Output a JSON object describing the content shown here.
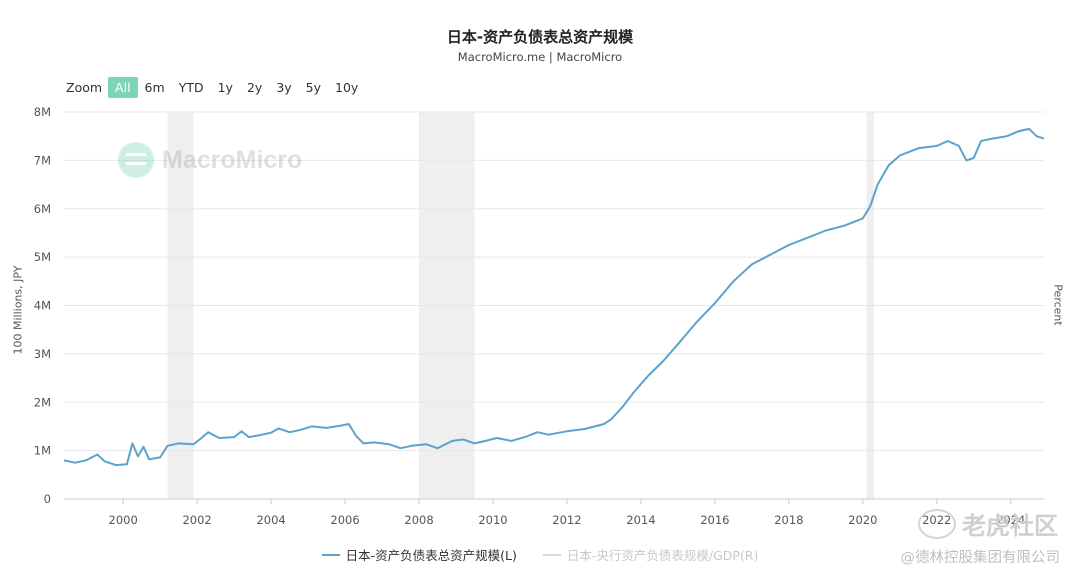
{
  "header": {
    "title": "日本-资产负债表总资产规模",
    "subtitle": "MacroMicro.me | MacroMicro"
  },
  "zoom": {
    "label": "Zoom",
    "options": [
      "All",
      "6m",
      "YTD",
      "1y",
      "2y",
      "3y",
      "5y",
      "10y"
    ],
    "active": "All"
  },
  "watermark": {
    "text": "MacroMicro"
  },
  "branding": {
    "site": "老虎社区",
    "company": "@德林控股集团有限公司"
  },
  "colors": {
    "series": "#5ba3cc",
    "inactive_series": "#d9d9d9",
    "recession": "#efefef",
    "zoom_active": "#7fd4b6"
  },
  "chart_data": {
    "type": "line",
    "ylabel": "100 Millions, JPY",
    "ylabel_right": "Percent",
    "ylim": [
      0,
      8000000
    ],
    "yticks": [
      0,
      1000000,
      2000000,
      3000000,
      4000000,
      5000000,
      6000000,
      7000000,
      8000000
    ],
    "ytick_labels": [
      "0",
      "1M",
      "2M",
      "3M",
      "4M",
      "5M",
      "6M",
      "7M",
      "8M"
    ],
    "xlim": [
      1998.4,
      2024.9
    ],
    "xticks": [
      2000,
      2002,
      2004,
      2006,
      2008,
      2010,
      2012,
      2014,
      2016,
      2018,
      2020,
      2022,
      2024
    ],
    "xtick_labels": [
      "2000",
      "2002",
      "2004",
      "2006",
      "2008",
      "2010",
      "2012",
      "2014",
      "2016",
      "2018",
      "2020",
      "2022",
      "2024"
    ],
    "grid": true,
    "legend_position": "bottom",
    "recessions": [
      [
        2001.2,
        2001.9
      ],
      [
        2008.0,
        2009.5
      ],
      [
        2020.1,
        2020.3
      ]
    ],
    "series": [
      {
        "name": "日本-资产负债表总资产规模(L)",
        "active": true,
        "points": [
          [
            1998.4,
            800000
          ],
          [
            1998.7,
            750000
          ],
          [
            1999.0,
            800000
          ],
          [
            1999.3,
            920000
          ],
          [
            1999.5,
            780000
          ],
          [
            1999.8,
            700000
          ],
          [
            2000.1,
            720000
          ],
          [
            2000.25,
            1150000
          ],
          [
            2000.4,
            880000
          ],
          [
            2000.55,
            1080000
          ],
          [
            2000.7,
            820000
          ],
          [
            2001.0,
            860000
          ],
          [
            2001.2,
            1100000
          ],
          [
            2001.5,
            1150000
          ],
          [
            2001.9,
            1130000
          ],
          [
            2002.1,
            1250000
          ],
          [
            2002.3,
            1380000
          ],
          [
            2002.6,
            1260000
          ],
          [
            2003.0,
            1280000
          ],
          [
            2003.2,
            1400000
          ],
          [
            2003.4,
            1280000
          ],
          [
            2003.7,
            1320000
          ],
          [
            2004.0,
            1370000
          ],
          [
            2004.2,
            1460000
          ],
          [
            2004.5,
            1380000
          ],
          [
            2004.8,
            1430000
          ],
          [
            2005.1,
            1500000
          ],
          [
            2005.5,
            1470000
          ],
          [
            2005.9,
            1520000
          ],
          [
            2006.1,
            1550000
          ],
          [
            2006.3,
            1300000
          ],
          [
            2006.5,
            1150000
          ],
          [
            2006.8,
            1170000
          ],
          [
            2007.2,
            1130000
          ],
          [
            2007.5,
            1050000
          ],
          [
            2007.8,
            1100000
          ],
          [
            2008.2,
            1130000
          ],
          [
            2008.5,
            1050000
          ],
          [
            2008.9,
            1200000
          ],
          [
            2009.2,
            1230000
          ],
          [
            2009.5,
            1150000
          ],
          [
            2009.8,
            1200000
          ],
          [
            2010.1,
            1260000
          ],
          [
            2010.5,
            1200000
          ],
          [
            2010.9,
            1290000
          ],
          [
            2011.2,
            1380000
          ],
          [
            2011.5,
            1330000
          ],
          [
            2012.0,
            1400000
          ],
          [
            2012.5,
            1450000
          ],
          [
            2013.0,
            1550000
          ],
          [
            2013.2,
            1650000
          ],
          [
            2013.5,
            1900000
          ],
          [
            2013.8,
            2200000
          ],
          [
            2014.2,
            2550000
          ],
          [
            2014.6,
            2850000
          ],
          [
            2015.0,
            3200000
          ],
          [
            2015.5,
            3650000
          ],
          [
            2016.0,
            4050000
          ],
          [
            2016.5,
            4500000
          ],
          [
            2017.0,
            4850000
          ],
          [
            2017.5,
            5050000
          ],
          [
            2018.0,
            5250000
          ],
          [
            2018.5,
            5400000
          ],
          [
            2019.0,
            5550000
          ],
          [
            2019.5,
            5650000
          ],
          [
            2020.0,
            5800000
          ],
          [
            2020.2,
            6050000
          ],
          [
            2020.4,
            6500000
          ],
          [
            2020.7,
            6900000
          ],
          [
            2021.0,
            7100000
          ],
          [
            2021.5,
            7250000
          ],
          [
            2022.0,
            7300000
          ],
          [
            2022.3,
            7400000
          ],
          [
            2022.6,
            7300000
          ],
          [
            2022.8,
            7000000
          ],
          [
            2023.0,
            7050000
          ],
          [
            2023.2,
            7400000
          ],
          [
            2023.5,
            7450000
          ],
          [
            2023.9,
            7500000
          ],
          [
            2024.2,
            7600000
          ],
          [
            2024.5,
            7650000
          ],
          [
            2024.7,
            7500000
          ],
          [
            2024.9,
            7450000
          ]
        ]
      },
      {
        "name": "日本-央行资产负债表规模/GDP(R)",
        "active": false,
        "points": []
      }
    ]
  }
}
